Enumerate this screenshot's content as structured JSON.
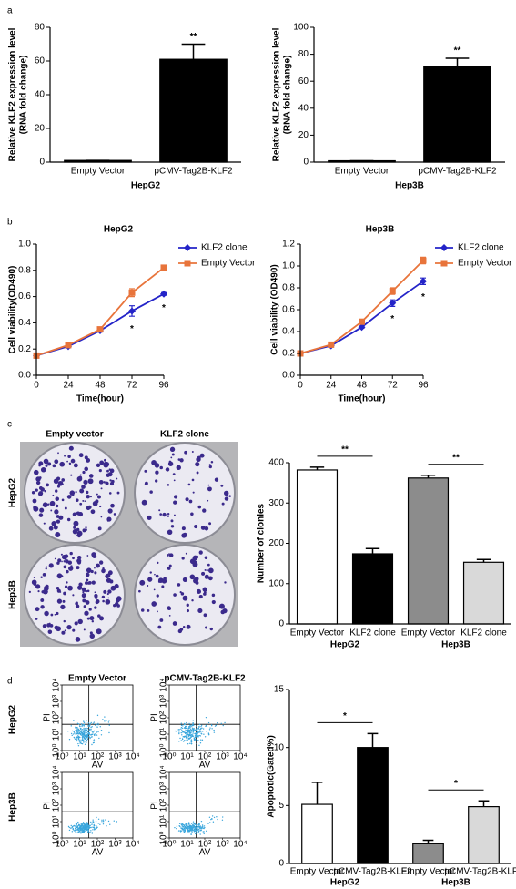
{
  "panels": [
    "a",
    "b",
    "c",
    "d"
  ],
  "colony": {
    "columns": [
      "Empty  vector",
      "KLF2 clone"
    ],
    "rows": [
      "HepG2",
      "Hep3B"
    ]
  },
  "flow": {
    "columns": [
      "Empty Vector",
      "pCMV-Tag2B-KLF2"
    ],
    "rows": [
      "HepG2",
      "Hep3B"
    ],
    "xlabel": "AV",
    "ylabel": "PI",
    "ticks": [
      {
        "value": 0,
        "label": "10⁰"
      },
      {
        "value": 1,
        "label": "10¹"
      },
      {
        "value": 2,
        "label": "10²"
      },
      {
        "value": 3,
        "label": "10³"
      },
      {
        "value": 4,
        "label": "10⁴"
      }
    ]
  },
  "chart_data": [
    {
      "type": "bar",
      "ylabel": [
        "Relative KLF2 expression level",
        "(RNA fold change)"
      ],
      "xlabel": "HepG2",
      "categories": [
        "Empty Vector",
        "pCMV-Tag2B-KLF2"
      ],
      "values": [
        1,
        61
      ],
      "errors": [
        0,
        9
      ],
      "colors": [
        "#000000",
        "#000000"
      ],
      "ylim": [
        0,
        80
      ],
      "yticks": [
        0,
        20,
        40,
        60,
        80
      ],
      "annotations": [
        {
          "text": "**",
          "index": 1
        }
      ]
    },
    {
      "type": "bar",
      "ylabel": [
        "Relative KLF2 expression level",
        "(RNA fold change)"
      ],
      "xlabel": "Hep3B",
      "categories": [
        "Empty Vector",
        "pCMV-Tag2B-KLF2"
      ],
      "values": [
        1,
        71
      ],
      "errors": [
        0,
        6
      ],
      "colors": [
        "#000000",
        "#000000"
      ],
      "ylim": [
        0,
        100
      ],
      "yticks": [
        0,
        20,
        40,
        60,
        80,
        100
      ],
      "annotations": [
        {
          "text": "**",
          "index": 1
        }
      ]
    },
    {
      "type": "line",
      "title": "HepG2",
      "xlabel": "Time(hour)",
      "ylabel": "Cell viability(OD490)",
      "x": [
        0,
        24,
        48,
        72,
        96
      ],
      "xlim": [
        0,
        96
      ],
      "xticks": [
        0,
        24,
        48,
        72,
        96
      ],
      "ylim": [
        0,
        1.0
      ],
      "yticks": [
        {
          "value": 0,
          "label": "0.0"
        },
        0.2,
        0.4,
        0.6,
        0.8,
        {
          "value": 1.0,
          "label": "1.0"
        }
      ],
      "series": [
        {
          "name": "KLF2 clone",
          "color": "#2424c8",
          "marker": "diamond",
          "values": [
            0.15,
            0.22,
            0.34,
            0.49,
            0.62
          ],
          "errors": [
            0.01,
            0.01,
            0.01,
            0.04,
            0.01
          ]
        },
        {
          "name": "Empty Vector",
          "color": "#e8743b",
          "marker": "square",
          "values": [
            0.15,
            0.23,
            0.35,
            0.63,
            0.82
          ],
          "errors": [
            0.01,
            0.01,
            0.01,
            0.03,
            0.02
          ]
        }
      ],
      "annotations": [
        {
          "text": "*",
          "index": 3
        },
        {
          "text": "*",
          "index": 4
        }
      ]
    },
    {
      "type": "line",
      "title": "Hep3B",
      "xlabel": "Time(hour)",
      "ylabel": "Cell viability (OD490)",
      "x": [
        0,
        24,
        48,
        72,
        96
      ],
      "xlim": [
        0,
        96
      ],
      "xticks": [
        0,
        24,
        48,
        72,
        96
      ],
      "ylim": [
        0,
        1.2
      ],
      "yticks": [
        {
          "value": 0,
          "label": "0.0"
        },
        0.2,
        0.4,
        0.6,
        0.8,
        {
          "value": 1.0,
          "label": "1.0"
        },
        1.2
      ],
      "series": [
        {
          "name": "KLF2 clone",
          "color": "#2424c8",
          "marker": "diamond",
          "values": [
            0.2,
            0.27,
            0.44,
            0.66,
            0.86
          ],
          "errors": [
            0.01,
            0.01,
            0.01,
            0.03,
            0.03
          ]
        },
        {
          "name": "Empty Vector",
          "color": "#e8743b",
          "marker": "square",
          "values": [
            0.2,
            0.28,
            0.49,
            0.77,
            1.05
          ],
          "errors": [
            0.01,
            0.01,
            0.01,
            0.03,
            0.03
          ]
        }
      ],
      "annotations": [
        {
          "text": "*",
          "index": 3
        },
        {
          "text": "*",
          "index": 4
        }
      ]
    },
    {
      "type": "bar",
      "ylabel": [
        "Number of clonies"
      ],
      "groups": [
        "HepG2",
        "Hep3B"
      ],
      "categories": [
        "Empty Vector",
        "KLF2 clone",
        "Empty Vector",
        "KLF2 clone"
      ],
      "values": [
        382,
        174,
        362,
        153
      ],
      "errors": [
        7,
        13,
        7,
        7
      ],
      "colors": [
        "#ffffff",
        "#000000",
        "#8c8c8c",
        "#d9d9d9"
      ],
      "ylim": [
        0,
        400
      ],
      "yticks": [
        0,
        100,
        200,
        300,
        400
      ],
      "annotations": [
        {
          "text": "**",
          "from": 0,
          "to": 1
        },
        {
          "text": "**",
          "from": 2,
          "to": 3
        }
      ]
    },
    {
      "type": "bar",
      "ylabel": [
        "Apoptotic(Gated%)"
      ],
      "groups": [
        "HepG2",
        "Hep3B"
      ],
      "categories": [
        "Empty Vector",
        "pCMV-Tag2B-KLF2",
        "Empty Vector",
        "pCMV-Tag2B-KLF2"
      ],
      "values": [
        5.1,
        10.0,
        1.7,
        4.9
      ],
      "errors": [
        1.9,
        1.2,
        0.3,
        0.5
      ],
      "colors": [
        "#ffffff",
        "#000000",
        "#8c8c8c",
        "#d9d9d9"
      ],
      "ylim": [
        0,
        15
      ],
      "yticks": [
        0,
        5,
        10,
        15
      ],
      "annotations": [
        {
          "text": "*",
          "from": 0,
          "to": 1
        },
        {
          "text": "*",
          "from": 2,
          "to": 3
        }
      ]
    }
  ]
}
